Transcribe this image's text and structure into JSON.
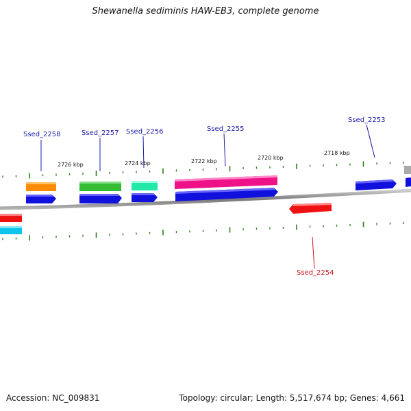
{
  "title": "Shewanella sediminis HAW-EB3, complete genome",
  "footer": {
    "accession": "Accession: NC_009831",
    "topology": "Topology: circular; Length: 5,517,674 bp; Genes: 4,661"
  },
  "colors": {
    "backbone": "#8a8a8a",
    "ticks": "#2e7d1e",
    "forward_label": "#1a1aa8",
    "reverse_label": "#cc1111"
  },
  "kbp_labels": [
    "2726 kbp",
    "2724 kbp",
    "2722 kbp",
    "2720 kbp",
    "2718 kbp"
  ],
  "genes": [
    {
      "label": "Ssed_2258",
      "strand": "forward",
      "color": "#ff8c00"
    },
    {
      "label": "Ssed_2257",
      "strand": "forward",
      "color": "#33bb33"
    },
    {
      "label": "Ssed_2256",
      "strand": "forward",
      "color": "#22e8a8"
    },
    {
      "label": "Ssed_2255",
      "strand": "forward",
      "color": "#ee1188"
    },
    {
      "label": "Ssed_2254",
      "strand": "reverse",
      "color": "#ee1111"
    },
    {
      "label": "Ssed_2253",
      "strand": "forward",
      "color": "#1111dd"
    }
  ]
}
